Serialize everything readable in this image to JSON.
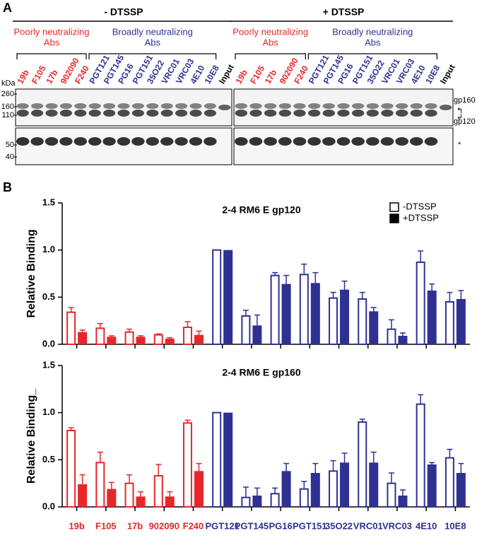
{
  "panel_a": {
    "label": "A",
    "kda": "kDa",
    "mw_markers": [
      260,
      160,
      110,
      50,
      40
    ],
    "right_labels": [
      "gp160",
      "gp120",
      "*"
    ],
    "conditions": [
      {
        "title": "- DTSSP",
        "extra_lane": "Input",
        "groups": [
          {
            "label_lines": [
              "Poorly neutralizing",
              "Abs"
            ],
            "color": "#e8262a",
            "lanes": [
              "19b",
              "F105",
              "17b",
              "902090",
              "F240"
            ]
          },
          {
            "label_lines": [
              "Broadly neutralizing",
              "Abs"
            ],
            "color": "#2e3192",
            "lanes": [
              "PGT121",
              "PGT145",
              "PG16",
              "PGT151",
              "35O22",
              "VRC01",
              "VRC03",
              "4E10",
              "10E8"
            ]
          }
        ]
      },
      {
        "title": "+ DTSSP",
        "extra_lane": "Input",
        "groups": [
          {
            "label_lines": [
              "Poorly neutralizing",
              "Abs"
            ],
            "color": "#e8262a",
            "lanes": [
              "19b",
              "F105",
              "17b",
              "902090",
              "F240"
            ]
          },
          {
            "label_lines": [
              "Broadly neutralizing",
              "Abs"
            ],
            "color": "#2e3192",
            "lanes": [
              "PGT121",
              "PGT145",
              "PG16",
              "PGT151",
              "35O22",
              "VRC01",
              "VRC03",
              "4E10",
              "10E8"
            ]
          }
        ]
      }
    ]
  },
  "panel_b_label": "B",
  "chart_data": [
    {
      "type": "bar",
      "title": "2-4 RM6 E gp120",
      "y_label": "Relative Binding",
      "legend": "upper right",
      "categories": [
        null,
        null,
        null,
        null,
        null,
        null,
        null,
        null,
        null,
        null,
        null,
        null,
        null,
        null
      ],
      "category_colors": [
        "#e8262a",
        "#e8262a",
        "#e8262a",
        "#e8262a",
        "#e8262a",
        "#2e3192",
        "#2e3192",
        "#2e3192",
        "#2e3192",
        "#2e3192",
        "#2e3192",
        "#2e3192",
        "#2e3192",
        "#2e3192"
      ],
      "ylim": [
        0,
        1.5
      ],
      "yticks": [
        {
          "value": 0,
          "label": "0.0"
        },
        0.5,
        {
          "value": 1,
          "label": "1.0"
        },
        1.5
      ],
      "series": [
        {
          "name": "-DTSSP",
          "style": "outline",
          "color": "#000000",
          "values": [
            0.34,
            0.17,
            0.13,
            0.1,
            0.18,
            1.0,
            0.3,
            0.73,
            0.74,
            0.49,
            0.48,
            0.16,
            0.87,
            0.45
          ],
          "errors": [
            0.05,
            0.05,
            0.03,
            0.01,
            0.06,
            0,
            0.06,
            0.03,
            0.11,
            0.06,
            0.07,
            0.1,
            0.12,
            0.1
          ]
        },
        {
          "name": "+DTSSP",
          "style": "filled",
          "color": "#000000",
          "values": [
            0.13,
            0.08,
            0.08,
            0.06,
            0.1,
            1.0,
            0.2,
            0.64,
            0.65,
            0.58,
            0.35,
            0.09,
            0.57,
            0.48
          ],
          "errors": [
            0.02,
            0.01,
            0.01,
            0.01,
            0.04,
            0,
            0.11,
            0.09,
            0.11,
            0.09,
            0.04,
            0.03,
            0.07,
            0.09
          ]
        }
      ]
    },
    {
      "type": "bar",
      "title": "2-4 RM6 E gp160",
      "y_label": "Relative Binding_",
      "legend": false,
      "categories": [
        "19b",
        "F105",
        "17b",
        "902090",
        "F240",
        "PGT121",
        "PGT145",
        "PG16",
        "PGT151",
        "35O22",
        "VRC01",
        "VRC03",
        "4E10",
        "10E8"
      ],
      "category_colors": [
        "#e8262a",
        "#e8262a",
        "#e8262a",
        "#e8262a",
        "#e8262a",
        "#2e3192",
        "#2e3192",
        "#2e3192",
        "#2e3192",
        "#2e3192",
        "#2e3192",
        "#2e3192",
        "#2e3192",
        "#2e3192"
      ],
      "ylim": [
        0,
        1.5
      ],
      "yticks": [
        {
          "value": 0,
          "label": "0.0"
        },
        0.5,
        {
          "value": 1,
          "label": "1.0"
        },
        1.5
      ],
      "series": [
        {
          "style": "outline",
          "values": [
            0.81,
            0.47,
            0.25,
            0.33,
            0.89,
            1.0,
            0.1,
            0.14,
            0.19,
            0.38,
            0.9,
            0.25,
            1.09,
            0.52
          ],
          "errors": [
            0.03,
            0.11,
            0.09,
            0.12,
            0.03,
            0,
            0.11,
            0.06,
            0.08,
            0.11,
            0.03,
            0.11,
            0.1,
            0.09
          ]
        },
        {
          "style": "filled",
          "values": [
            0.24,
            0.19,
            0.11,
            0.11,
            0.38,
            1.0,
            0.12,
            0.38,
            0.36,
            0.47,
            0.47,
            0.12,
            0.45,
            0.36
          ],
          "errors": [
            0.1,
            0.07,
            0.05,
            0.05,
            0.08,
            0,
            0.08,
            0.08,
            0.1,
            0.1,
            0.11,
            0.06,
            0.02,
            0.1
          ]
        }
      ]
    }
  ]
}
